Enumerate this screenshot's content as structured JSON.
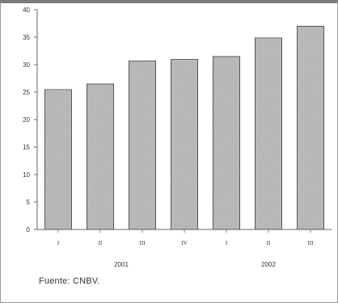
{
  "chart_data": {
    "type": "bar",
    "title": "",
    "xlabel": "",
    "ylabel": "",
    "ylim": [
      0,
      40
    ],
    "yticks": [
      0,
      5,
      10,
      15,
      20,
      25,
      30,
      35,
      40
    ],
    "categories": [
      "I",
      "II",
      "III",
      "IV",
      "I",
      "II",
      "III"
    ],
    "groups": [
      {
        "label": "2001",
        "count": 4
      },
      {
        "label": "2002",
        "count": 3
      }
    ],
    "values": [
      25.5,
      26.5,
      30.7,
      31.0,
      31.5,
      34.9,
      37.0
    ],
    "grid": false,
    "bar_color": "#c4c4c4",
    "bar_edge_color": "#555555"
  },
  "source_note": "Fuente: CNBV."
}
